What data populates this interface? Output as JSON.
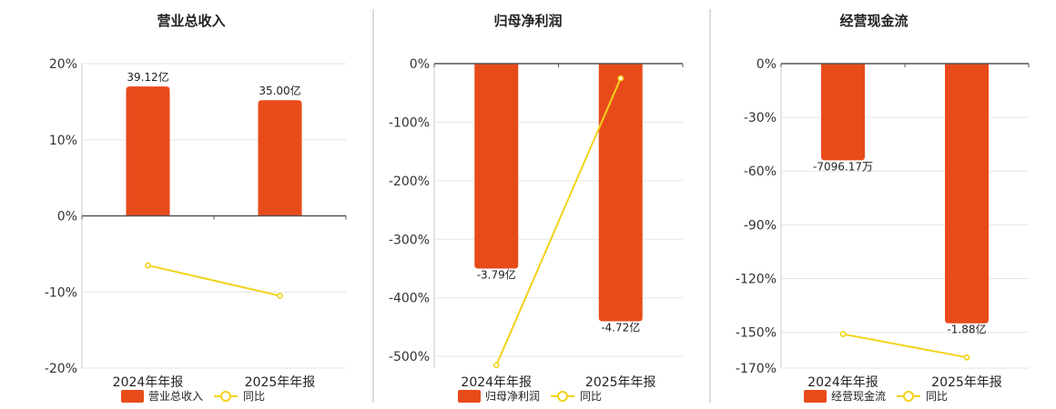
{
  "colors": {
    "bar": "#E84B1A",
    "line": "#F2D21A",
    "grid": "#E6E6E6",
    "axis": "#555555",
    "divider": "#BBBBBB"
  },
  "chart_data": [
    {
      "type": "bar",
      "title": "营业总收入",
      "categories": [
        "2024年年报",
        "2025年年报"
      ],
      "ylim": [
        -20,
        20
      ],
      "yticks": [
        20,
        10,
        0,
        -10,
        -20
      ],
      "ytick_labels": [
        "20%",
        "10%",
        "0%",
        "-10%",
        "-20%"
      ],
      "grid": true,
      "legend_position": "bottom",
      "series": [
        {
          "name": "营业总收入",
          "kind": "bar",
          "values": [
            17,
            15.2
          ],
          "data_labels": [
            "39.12亿",
            "35.00亿"
          ]
        },
        {
          "name": "同比",
          "kind": "line",
          "values": [
            -6.5,
            -10.5
          ]
        }
      ]
    },
    {
      "type": "bar",
      "title": "归母净利润",
      "categories": [
        "2024年年报",
        "2025年年报"
      ],
      "ylim": [
        -520,
        0
      ],
      "yticks": [
        0,
        -100,
        -200,
        -300,
        -400,
        -500
      ],
      "ytick_labels": [
        "0%",
        "-100%",
        "-200%",
        "-300%",
        "-400%",
        "-500%"
      ],
      "grid": true,
      "legend_position": "bottom",
      "series": [
        {
          "name": "归母净利润",
          "kind": "bar",
          "values": [
            -350,
            -440
          ],
          "data_labels": [
            "-3.79亿",
            "-4.72亿"
          ]
        },
        {
          "name": "同比",
          "kind": "line",
          "values": [
            -515,
            -25
          ]
        }
      ]
    },
    {
      "type": "bar",
      "title": "经营现金流",
      "categories": [
        "2024年年报",
        "2025年年报"
      ],
      "ylim": [
        -170,
        0
      ],
      "yticks": [
        0,
        -30,
        -60,
        -90,
        -120,
        -150,
        -170
      ],
      "ytick_labels": [
        "0%",
        "-30%",
        "-60%",
        "-90%",
        "-120%",
        "-150%",
        "-170%"
      ],
      "grid": true,
      "legend_position": "bottom",
      "series": [
        {
          "name": "经营现金流",
          "kind": "bar",
          "values": [
            -54,
            -145
          ],
          "data_labels": [
            "-7096.17万",
            "-1.88亿"
          ]
        },
        {
          "name": "同比",
          "kind": "line",
          "values": [
            -151,
            -164
          ]
        }
      ]
    }
  ]
}
